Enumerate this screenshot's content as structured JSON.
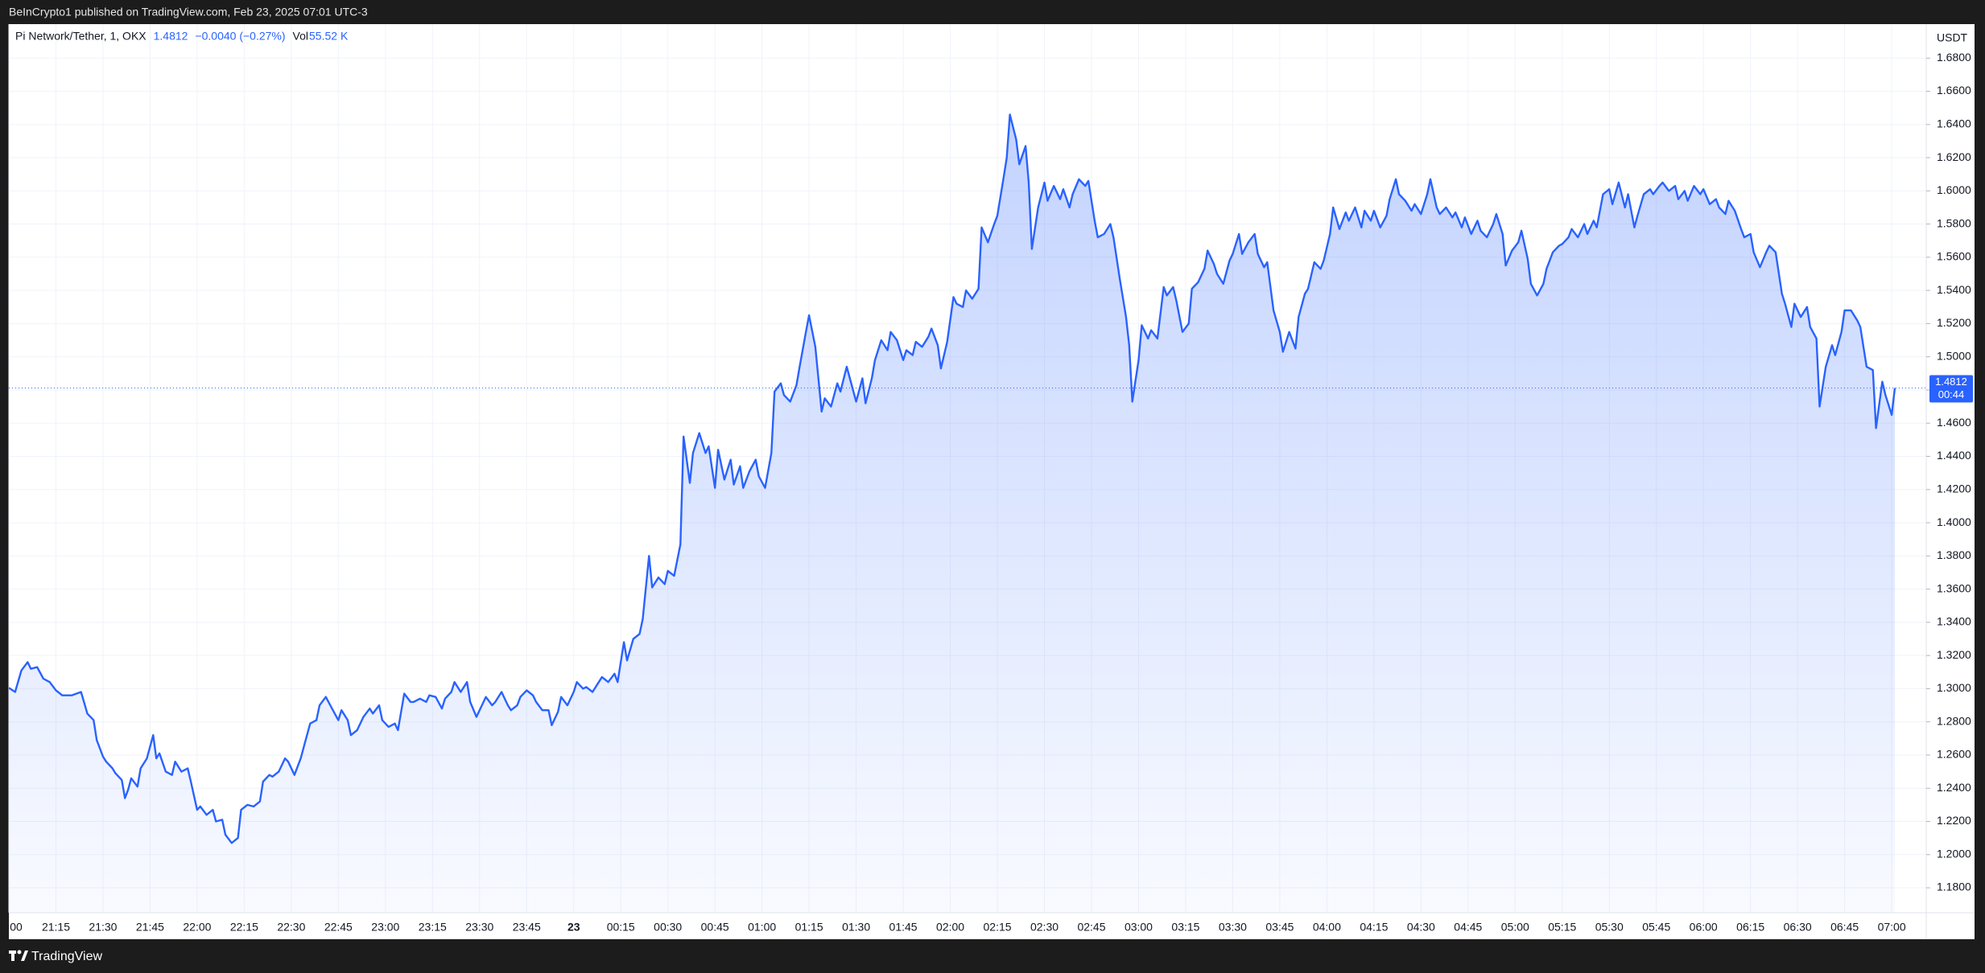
{
  "header": {
    "published": "BeInCrypto1 published on TradingView.com, Feb 23, 2025 07:01 UTC-3"
  },
  "footer": {
    "brand": "TradingView"
  },
  "chart_data": {
    "type": "area",
    "legend": {
      "change": "−0.0040 (−0.27%)",
      "volume_label": "Vol",
      "volume": "55.52 K"
    },
    "currency": "USDT",
    "last_price": 1.4812,
    "countdown": "00:44",
    "grid": true,
    "xlim": [
      "21:00",
      "07:11"
    ],
    "ylim": [
      1.165,
      1.7
    ],
    "yticks": [
      {
        "value": 1.18,
        "label": "1.1800"
      },
      {
        "value": 1.2,
        "label": "1.2000"
      },
      {
        "value": 1.22,
        "label": "1.2200"
      },
      {
        "value": 1.24,
        "label": "1.2400"
      },
      {
        "value": 1.26,
        "label": "1.2600"
      },
      {
        "value": 1.28,
        "label": "1.2800"
      },
      {
        "value": 1.3,
        "label": "1.3000"
      },
      {
        "value": 1.32,
        "label": "1.3200"
      },
      {
        "value": 1.34,
        "label": "1.3400"
      },
      {
        "value": 1.36,
        "label": "1.3600"
      },
      {
        "value": 1.38,
        "label": "1.3800"
      },
      {
        "value": 1.4,
        "label": "1.4000"
      },
      {
        "value": 1.42,
        "label": "1.4200"
      },
      {
        "value": 1.44,
        "label": "1.4400"
      },
      {
        "value": 1.46,
        "label": "1.4600"
      },
      {
        "value": 1.48,
        "label": "1.4800"
      },
      {
        "value": 1.5,
        "label": "1.5000"
      },
      {
        "value": 1.52,
        "label": "1.5200"
      },
      {
        "value": 1.54,
        "label": "1.5400"
      },
      {
        "value": 1.56,
        "label": "1.5600"
      },
      {
        "value": 1.58,
        "label": "1.5800"
      },
      {
        "value": 1.6,
        "label": "1.6000"
      },
      {
        "value": 1.62,
        "label": "1.6200"
      },
      {
        "value": 1.64,
        "label": "1.6400"
      },
      {
        "value": 1.66,
        "label": "1.6600"
      },
      {
        "value": 1.68,
        "label": "1.6800"
      }
    ],
    "xticks": [
      {
        "value": "21:00",
        "label": "00"
      },
      "21:15",
      "21:30",
      "21:45",
      "22:00",
      "22:15",
      "22:30",
      "22:45",
      "23:00",
      "23:15",
      "23:30",
      "23:45",
      {
        "value": "00:00",
        "label": "23"
      },
      "00:15",
      "00:30",
      "00:45",
      "01:00",
      "01:15",
      "01:30",
      "01:45",
      "02:00",
      "02:15",
      "02:30",
      "02:45",
      "03:00",
      "03:15",
      "03:30",
      "03:45",
      "04:00",
      "04:15",
      "04:30",
      "04:45",
      "05:00",
      "05:15",
      "05:30",
      "05:45",
      "06:00",
      "06:15",
      "06:30",
      "06:45",
      "07:00"
    ],
    "x": [
      "21:00",
      "21:02",
      "21:04",
      "21:06",
      "21:07",
      "21:09",
      "21:11",
      "21:13",
      "21:15",
      "21:17",
      "21:20",
      "21:23",
      "21:25",
      "21:27",
      "21:28",
      "21:30",
      "21:31",
      "21:33",
      "21:34",
      "21:36",
      "21:37",
      "21:38",
      "21:39",
      "21:41",
      "21:42",
      "21:44",
      "21:46",
      "21:47",
      "21:48",
      "21:50",
      "21:52",
      "21:53",
      "21:55",
      "21:57",
      "21:58",
      "22:00",
      "22:01",
      "22:03",
      "22:05",
      "22:06",
      "22:08",
      "22:09",
      "22:11",
      "22:13",
      "22:14",
      "22:16",
      "22:18",
      "22:20",
      "22:21",
      "22:23",
      "22:24",
      "22:26",
      "22:28",
      "22:29",
      "22:31",
      "22:33",
      "22:34",
      "22:36",
      "22:38",
      "22:39",
      "22:41",
      "22:43",
      "22:45",
      "22:46",
      "22:48",
      "22:49",
      "22:51",
      "22:53",
      "22:55",
      "22:56",
      "22:58",
      "22:59",
      "23:01",
      "23:03",
      "23:04",
      "23:06",
      "23:08",
      "23:09",
      "23:11",
      "23:13",
      "23:14",
      "23:16",
      "23:18",
      "23:19",
      "23:21",
      "23:22",
      "23:24",
      "23:26",
      "23:27",
      "23:29",
      "23:31",
      "23:32",
      "23:34",
      "23:35",
      "23:37",
      "23:39",
      "23:40",
      "23:42",
      "23:43",
      "23:45",
      "23:47",
      "23:48",
      "23:50",
      "23:52",
      "23:53",
      "23:55",
      "23:56",
      "23:58",
      "00:00",
      "00:01",
      "00:03",
      "00:04",
      "00:06",
      "00:08",
      "00:09",
      "00:11",
      "00:13",
      "00:14",
      "00:16",
      "00:17",
      "00:19",
      "00:21",
      "00:22",
      "00:24",
      "00:25",
      "00:27",
      "00:29",
      "00:30",
      "00:32",
      "00:34",
      "00:35",
      "00:37",
      "00:38",
      "00:40",
      "00:42",
      "00:43",
      "00:45",
      "00:46",
      "00:48",
      "00:50",
      "00:51",
      "00:53",
      "00:54",
      "00:56",
      "00:58",
      "00:59",
      "01:01",
      "01:03",
      "01:04",
      "01:06",
      "01:07",
      "01:09",
      "01:11",
      "01:12",
      "01:14",
      "01:15",
      "01:17",
      "01:19",
      "01:20",
      "01:22",
      "01:24",
      "01:25",
      "01:27",
      "01:28",
      "01:30",
      "01:32",
      "01:33",
      "01:35",
      "01:36",
      "01:38",
      "01:40",
      "01:41",
      "01:43",
      "01:45",
      "01:46",
      "01:48",
      "01:49",
      "01:51",
      "01:53",
      "01:54",
      "01:56",
      "01:57",
      "01:59",
      "02:01",
      "02:02",
      "02:04",
      "02:05",
      "02:07",
      "02:09",
      "02:10",
      "02:12",
      "02:14",
      "02:15",
      "02:17",
      "02:18",
      "02:19",
      "02:21",
      "02:22",
      "02:24",
      "02:25",
      "02:26",
      "02:28",
      "02:30",
      "02:31",
      "02:33",
      "02:35",
      "02:36",
      "02:38",
      "02:39",
      "02:41",
      "02:43",
      "02:44",
      "02:46",
      "02:47",
      "02:49",
      "02:51",
      "02:52",
      "02:54",
      "02:56",
      "02:57",
      "02:58",
      "03:00",
      "03:01",
      "03:03",
      "03:04",
      "03:06",
      "03:08",
      "03:09",
      "03:11",
      "03:12",
      "03:14",
      "03:16",
      "03:17",
      "03:19",
      "03:21",
      "03:22",
      "03:24",
      "03:25",
      "03:27",
      "03:29",
      "03:30",
      "03:32",
      "03:33",
      "03:35",
      "03:37",
      "03:38",
      "03:40",
      "03:41",
      "03:43",
      "03:45",
      "03:46",
      "03:48",
      "03:50",
      "03:51",
      "03:53",
      "03:54",
      "03:56",
      "03:58",
      "03:59",
      "04:01",
      "04:02",
      "04:04",
      "04:06",
      "04:07",
      "04:09",
      "04:11",
      "04:12",
      "04:14",
      "04:15",
      "04:17",
      "04:19",
      "04:20",
      "04:22",
      "04:23",
      "04:25",
      "04:27",
      "04:28",
      "04:30",
      "04:32",
      "04:33",
      "04:35",
      "04:36",
      "04:38",
      "04:40",
      "04:41",
      "04:43",
      "04:44",
      "04:46",
      "04:48",
      "04:49",
      "04:51",
      "04:53",
      "04:54",
      "04:56",
      "04:57",
      "04:59",
      "05:01",
      "05:02",
      "05:04",
      "05:05",
      "05:07",
      "05:09",
      "05:10",
      "05:12",
      "05:14",
      "05:15",
      "05:17",
      "05:18",
      "05:20",
      "05:22",
      "05:23",
      "05:25",
      "05:26",
      "05:28",
      "05:30",
      "05:31",
      "05:33",
      "05:35",
      "05:36",
      "05:38",
      "05:39",
      "05:41",
      "05:43",
      "05:44",
      "05:46",
      "05:47",
      "05:49",
      "05:51",
      "05:52",
      "05:54",
      "05:55",
      "05:57",
      "05:59",
      "06:00",
      "06:02",
      "06:04",
      "06:05",
      "06:07",
      "06:08",
      "06:10",
      "06:12",
      "06:13",
      "06:15",
      "06:16",
      "06:18",
      "06:20",
      "06:21",
      "06:23",
      "06:25",
      "06:26",
      "06:28",
      "06:29",
      "06:31",
      "06:33",
      "06:34",
      "06:36",
      "06:37",
      "06:39",
      "06:41",
      "06:42",
      "06:44",
      "06:45",
      "06:47",
      "06:49",
      "06:50",
      "06:52",
      "06:54",
      "06:55",
      "06:57",
      "06:58",
      "07:00",
      "07:01"
    ],
    "series": [
      {
        "name": "Pi Network/Tether, 1, OKX",
        "color": "#2962ff",
        "values": [
          1.3005,
          1.298,
          1.311,
          1.316,
          1.312,
          1.313,
          1.306,
          1.304,
          1.299,
          1.296,
          1.296,
          1.298,
          1.285,
          1.281,
          1.269,
          1.259,
          1.256,
          1.252,
          1.249,
          1.245,
          1.234,
          1.239,
          1.246,
          1.241,
          1.252,
          1.258,
          1.272,
          1.258,
          1.261,
          1.25,
          1.248,
          1.256,
          1.25,
          1.252,
          1.244,
          1.227,
          1.229,
          1.224,
          1.227,
          1.22,
          1.221,
          1.212,
          1.207,
          1.21,
          1.227,
          1.23,
          1.229,
          1.232,
          1.244,
          1.248,
          1.247,
          1.25,
          1.258,
          1.256,
          1.248,
          1.258,
          1.265,
          1.279,
          1.281,
          1.29,
          1.295,
          1.288,
          1.281,
          1.287,
          1.281,
          1.272,
          1.275,
          1.283,
          1.288,
          1.285,
          1.29,
          1.281,
          1.277,
          1.279,
          1.275,
          1.297,
          1.292,
          1.292,
          1.294,
          1.292,
          1.296,
          1.295,
          1.288,
          1.294,
          1.298,
          1.304,
          1.298,
          1.304,
          1.292,
          1.283,
          1.291,
          1.295,
          1.29,
          1.292,
          1.298,
          1.29,
          1.287,
          1.29,
          1.295,
          1.299,
          1.296,
          1.292,
          1.287,
          1.287,
          1.278,
          1.286,
          1.295,
          1.29,
          1.298,
          1.304,
          1.3,
          1.301,
          1.298,
          1.304,
          1.307,
          1.304,
          1.309,
          1.304,
          1.328,
          1.317,
          1.33,
          1.333,
          1.342,
          1.38,
          1.361,
          1.367,
          1.363,
          1.371,
          1.368,
          1.387,
          1.452,
          1.424,
          1.442,
          1.454,
          1.442,
          1.446,
          1.421,
          1.444,
          1.426,
          1.438,
          1.423,
          1.434,
          1.421,
          1.431,
          1.438,
          1.428,
          1.421,
          1.442,
          1.479,
          1.484,
          1.477,
          1.473,
          1.483,
          1.494,
          1.515,
          1.525,
          1.506,
          1.467,
          1.475,
          1.47,
          1.484,
          1.479,
          1.494,
          1.487,
          1.473,
          1.487,
          1.472,
          1.487,
          1.498,
          1.51,
          1.504,
          1.515,
          1.51,
          1.498,
          1.504,
          1.501,
          1.509,
          1.506,
          1.512,
          1.517,
          1.507,
          1.493,
          1.509,
          1.536,
          1.532,
          1.53,
          1.54,
          1.535,
          1.541,
          1.578,
          1.569,
          1.58,
          1.585,
          1.608,
          1.62,
          1.646,
          1.631,
          1.616,
          1.627,
          1.605,
          1.565,
          1.59,
          1.605,
          1.594,
          1.603,
          1.595,
          1.601,
          1.59,
          1.598,
          1.607,
          1.603,
          1.606,
          1.582,
          1.572,
          1.574,
          1.58,
          1.572,
          1.547,
          1.524,
          1.507,
          1.473,
          1.498,
          1.519,
          1.511,
          1.516,
          1.511,
          1.542,
          1.537,
          1.542,
          1.534,
          1.515,
          1.52,
          1.541,
          1.545,
          1.553,
          1.564,
          1.556,
          1.55,
          1.544,
          1.558,
          1.562,
          1.574,
          1.562,
          1.569,
          1.574,
          1.562,
          1.554,
          1.557,
          1.528,
          1.515,
          1.503,
          1.515,
          1.505,
          1.524,
          1.538,
          1.541,
          1.557,
          1.553,
          1.558,
          1.574,
          1.59,
          1.577,
          1.587,
          1.582,
          1.59,
          1.578,
          1.588,
          1.582,
          1.588,
          1.578,
          1.585,
          1.595,
          1.607,
          1.598,
          1.594,
          1.588,
          1.592,
          1.586,
          1.598,
          1.607,
          1.59,
          1.586,
          1.59,
          1.584,
          1.587,
          1.578,
          1.584,
          1.574,
          1.582,
          1.576,
          1.572,
          1.58,
          1.586,
          1.574,
          1.555,
          1.564,
          1.569,
          1.576,
          1.559,
          1.544,
          1.537,
          1.544,
          1.553,
          1.563,
          1.567,
          1.568,
          1.572,
          1.577,
          1.572,
          1.58,
          1.574,
          1.582,
          1.578,
          1.598,
          1.601,
          1.592,
          1.605,
          1.59,
          1.598,
          1.578,
          1.585,
          1.598,
          1.601,
          1.598,
          1.603,
          1.605,
          1.6,
          1.603,
          1.595,
          1.6,
          1.594,
          1.603,
          1.598,
          1.601,
          1.592,
          1.595,
          1.59,
          1.586,
          1.594,
          1.588,
          1.577,
          1.572,
          1.574,
          1.563,
          1.554,
          1.563,
          1.567,
          1.563,
          1.538,
          1.532,
          1.518,
          1.532,
          1.524,
          1.53,
          1.518,
          1.511,
          1.47,
          1.494,
          1.507,
          1.501,
          1.515,
          1.528,
          1.528,
          1.522,
          1.518,
          1.494,
          1.492,
          1.457,
          1.485,
          1.477,
          1.465,
          1.4812
        ]
      }
    ]
  }
}
